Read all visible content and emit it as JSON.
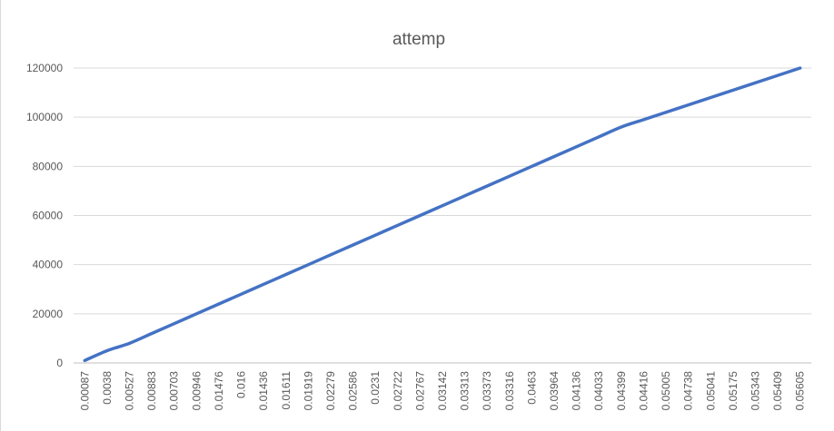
{
  "chart_data": {
    "type": "line",
    "title": "attemp",
    "xlabel": "",
    "ylabel": "",
    "ylim": [
      0,
      120000
    ],
    "y_ticks": [
      0,
      20000,
      40000,
      60000,
      80000,
      100000,
      120000
    ],
    "y_tick_labels": [
      "0",
      "20000",
      "40000",
      "60000",
      "80000",
      "100000",
      "120000"
    ],
    "grid": true,
    "legend": "none",
    "color": "#4472C4",
    "categories": [
      "0.00087",
      "0.0038",
      "0.00527",
      "0.00883",
      "0.00703",
      "0.00946",
      "0.01476",
      "0.016",
      "0.01436",
      "0.01611",
      "0.01919",
      "0.02279",
      "0.02586",
      "0.0231",
      "0.02722",
      "0.02767",
      "0.03142",
      "0.03313",
      "0.03373",
      "0.03316",
      "0.0463",
      "0.03964",
      "0.04136",
      "0.04033",
      "0.04399",
      "0.04416",
      "0.05005",
      "0.04738",
      "0.05041",
      "0.05175",
      "0.05343",
      "0.05409",
      "0.05605"
    ],
    "series": [
      {
        "values": [
          1000,
          5000,
          8000,
          12000,
          16000,
          20000,
          24000,
          28000,
          32000,
          36000,
          40000,
          44000,
          48000,
          52000,
          56000,
          60000,
          64000,
          68000,
          72000,
          76000,
          80000,
          84000,
          88000,
          92000,
          96000,
          99000,
          102000,
          105000,
          108000,
          111000,
          114000,
          117000,
          120000
        ]
      }
    ]
  }
}
